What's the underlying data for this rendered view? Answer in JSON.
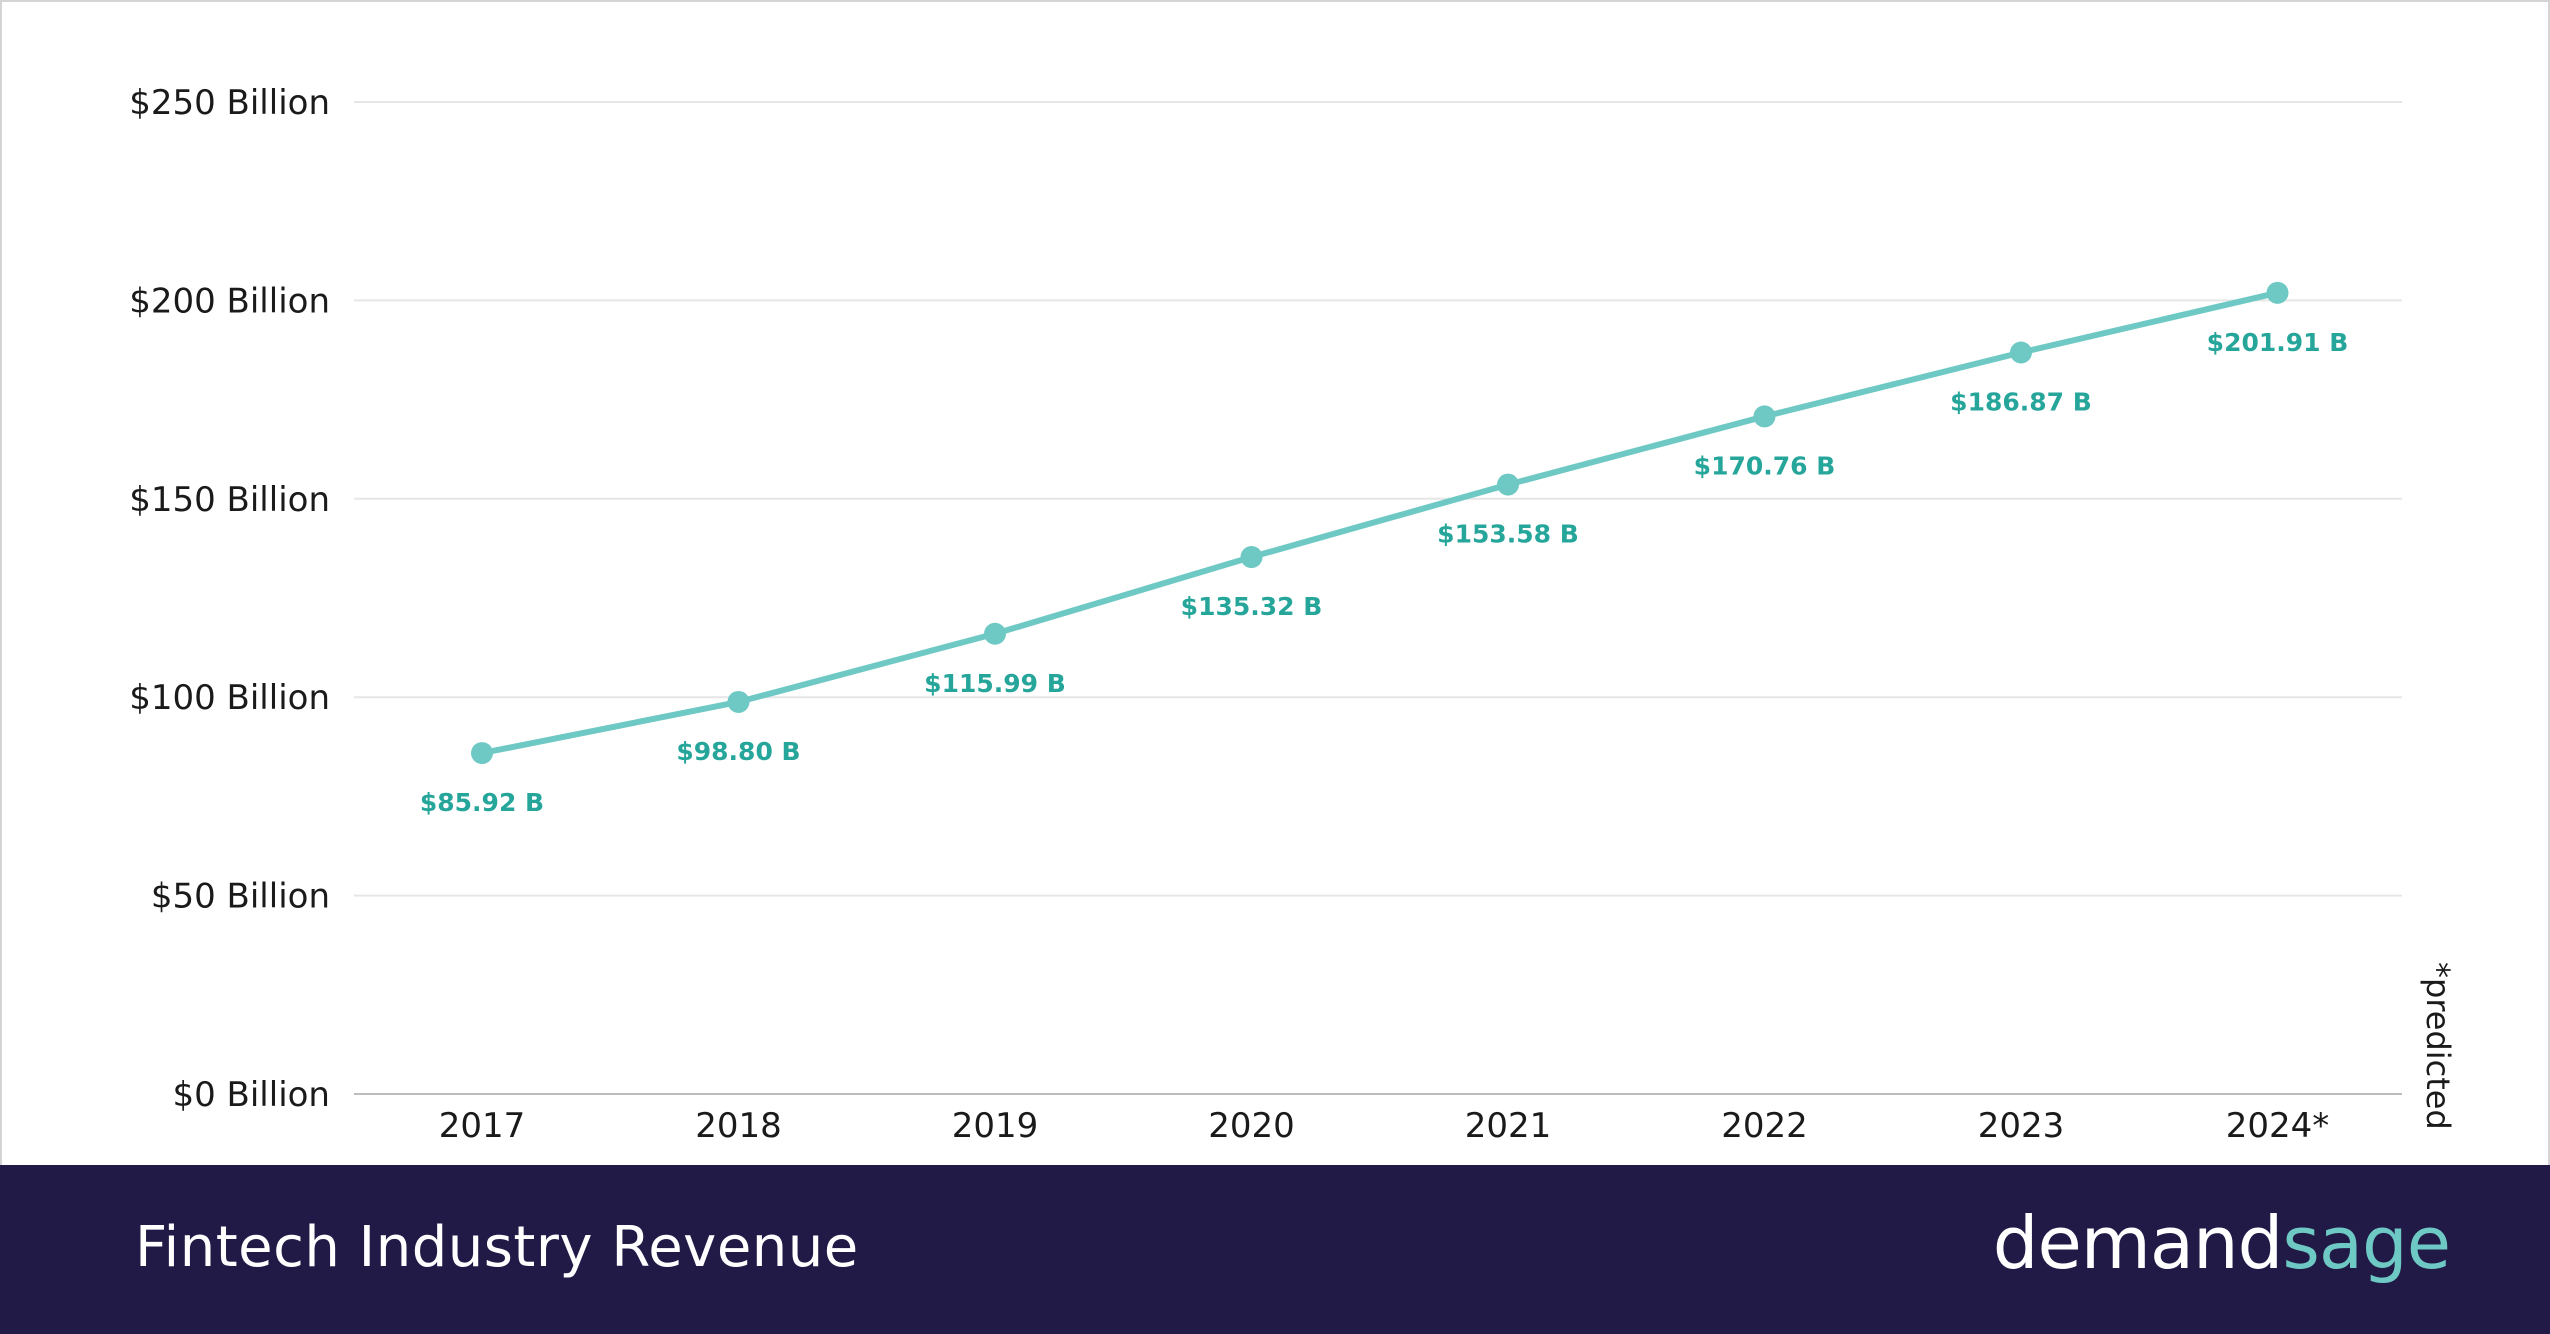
{
  "chart_data": {
    "type": "line",
    "title": "Fintech Industry Revenue",
    "categories": [
      "2017",
      "2018",
      "2019",
      "2020",
      "2021",
      "2022",
      "2023",
      "2024*"
    ],
    "series": [
      {
        "name": "Fintech Industry Revenue",
        "values": [
          85.92,
          98.8,
          115.99,
          135.32,
          153.58,
          170.76,
          186.87,
          201.91
        ],
        "labels": [
          "$85.92 B",
          "$98.80 B",
          "$115.99 B",
          "$135.32 B",
          "$153.58 B",
          "$170.76 B",
          "$186.87 B",
          "$201.91 B"
        ]
      }
    ],
    "yticks": [
      0,
      50,
      100,
      150,
      200,
      250
    ],
    "ytick_labels": [
      "$0 Billion",
      "$50 Billion",
      "$100 Billion",
      "$150 Billion",
      "$200 Billion",
      "$250 Billion"
    ],
    "ylim": [
      0,
      250
    ],
    "grid": true,
    "annotation": "*predicted",
    "line_color": "#6ec9c4",
    "label_color": "#26a69a"
  },
  "footer": {
    "title": "Fintech Industry Revenue",
    "brand_part1": "demand",
    "brand_part2": "sage",
    "background": "#211a47"
  }
}
